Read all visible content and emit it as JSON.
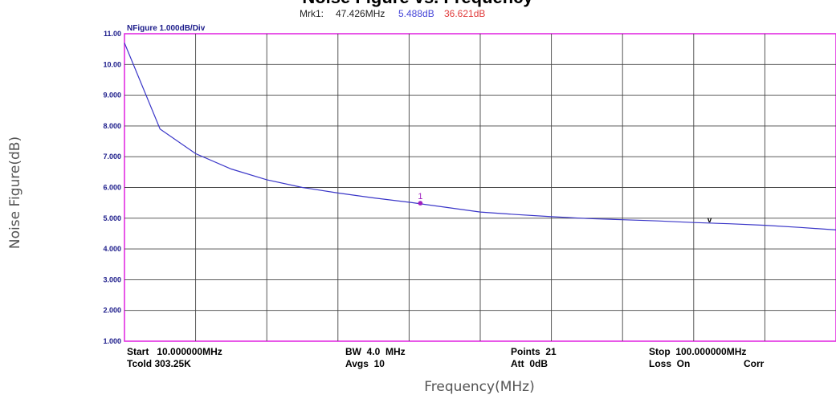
{
  "chart_data": {
    "type": "line",
    "title": "Noise Figure vs. Frequency",
    "xlabel": "Frequency(MHz)",
    "ylabel": "Noise Figure(dB)",
    "xlim": [
      10,
      100
    ],
    "ylim": [
      1.0,
      11.0
    ],
    "grid": true,
    "scale_label": "NFigure  1.000dB/Div",
    "y_ticks": [
      "11.00",
      "10.00",
      "9.000",
      "8.000",
      "7.000",
      "6.000",
      "5.000",
      "4.000",
      "3.000",
      "2.000",
      "1.000"
    ],
    "series": [
      {
        "color": "#3a36c8",
        "x": [
          10,
          14.5,
          19,
          23.5,
          28,
          32.5,
          37,
          41.5,
          46,
          50.5,
          55,
          59.5,
          64,
          68.5,
          73,
          77.5,
          82,
          86.5,
          91,
          95.5,
          100
        ],
        "y": [
          10.7,
          7.9,
          7.1,
          6.6,
          6.25,
          6.0,
          5.82,
          5.66,
          5.52,
          5.36,
          5.2,
          5.12,
          5.05,
          4.99,
          4.95,
          4.91,
          4.86,
          4.82,
          4.77,
          4.7,
          4.62
        ]
      }
    ],
    "marker": {
      "label": "1",
      "x": 47.426,
      "y": 5.488,
      "color": "#a020c0"
    },
    "marker_readout": {
      "name": "Mrk1:",
      "freq": "47.426MHz",
      "nf": "5.488dB",
      "gain": "36.621dB"
    },
    "delta_marker": {
      "label": "v",
      "x": 84,
      "y": 4.92
    },
    "info": {
      "start": "Start   10.000000MHz",
      "tcold": "Tcold 303.25K",
      "bw": "BW  4.0  MHz",
      "avgs": "Avgs  10",
      "points": "Points  21",
      "att": "Att  0dB",
      "stop": "Stop  100.000000MHz",
      "loss": "Loss  On",
      "corr": "Corr"
    }
  }
}
